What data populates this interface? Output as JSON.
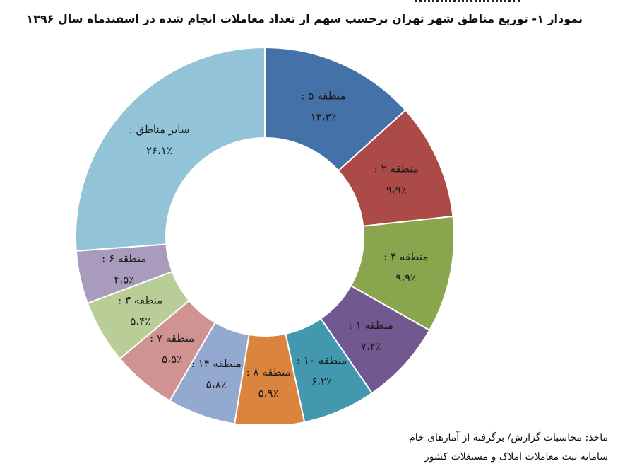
{
  "title": "نمودار ۱- توزیع مناطق شهر تهران برحسب سهم از تعداد معاملات انجام شده در اسفندماه سال ۱۳۹۶",
  "source": {
    "line1": "ماخذ: محاسبات گزارش/ برگرفته از آمارهای خام",
    "line2": "سامانه ثبت معاملات املاک و مستغلات کشور"
  },
  "chart_data": {
    "type": "pie",
    "variant": "doughnut",
    "title": "نمودار ۱- توزیع مناطق شهر تهران برحسب سهم از تعداد معاملات انجام شده در اسفندماه سال ۱۳۹۶",
    "unit": "%",
    "slices": [
      {
        "name": "منطقه ۵",
        "label": "منطقه ۵ :",
        "value": 13.3,
        "display": "۱۳،۳٪",
        "color": "#4472a8"
      },
      {
        "name": "منطقه ۲",
        "label": "منطقه ۲ :",
        "value": 9.9,
        "display": "۹،۹٪",
        "color": "#ab4a47"
      },
      {
        "name": "منطقه ۴",
        "label": "منطقه ۴ :",
        "value": 9.9,
        "display": "۹،۹٪",
        "color": "#89a54e"
      },
      {
        "name": "منطقه ۱",
        "label": "منطقه ۱ :",
        "value": 7.2,
        "display": "۷،۲٪",
        "color": "#71588f"
      },
      {
        "name": "منطقه ۱۰",
        "label": "منطقه ۱۰ :",
        "value": 6.2,
        "display": "۶،۲٪",
        "color": "#4298af"
      },
      {
        "name": "منطقه ۸",
        "label": "منطقه ۸ :",
        "value": 5.9,
        "display": "۵،۹٪",
        "color": "#db843d"
      },
      {
        "name": "منطقه ۱۴",
        "label": "منطقه ۱۴ :",
        "value": 5.8,
        "display": "۵،۸٪",
        "color": "#93a9cf"
      },
      {
        "name": "منطقه ۷",
        "label": "منطقه ۷ :",
        "value": 5.5,
        "display": "۵،۵٪",
        "color": "#d19392"
      },
      {
        "name": "منطقه ۳",
        "label": "منطقه ۳ :",
        "value": 5.4,
        "display": "۵،۴٪",
        "color": "#b9cd96"
      },
      {
        "name": "منطقه ۶",
        "label": "منطقه ۶ :",
        "value": 4.5,
        "display": "۴،۵٪",
        "color": "#a99bbd"
      },
      {
        "name": "سایر مناطق",
        "label": "سایر مناطق :",
        "value": 26.1,
        "display": "۲۶،۱٪",
        "color": "#92c3d6"
      }
    ]
  }
}
